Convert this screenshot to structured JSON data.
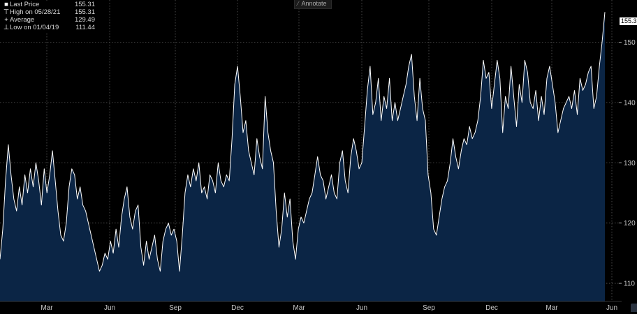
{
  "legend": {
    "items": [
      {
        "marker": "■",
        "label": "Last Price",
        "value": "155.31"
      },
      {
        "marker": "⊤",
        "label": "High on 05/28/21",
        "value": "155.31"
      },
      {
        "marker": "+",
        "label": "Average",
        "value": "129.49"
      },
      {
        "marker": "⊥",
        "label": "Low on 01/04/19",
        "value": "111.44"
      }
    ]
  },
  "toolbar": {
    "annotate_label": "Annotate"
  },
  "last_price_tag": "155.3",
  "colors": {
    "background": "#000000",
    "area_fill": "#0b2545",
    "line": "#ffffff",
    "grid": "#5a5a5a",
    "axis_text": "#c8c8c8"
  },
  "chart_data": {
    "type": "area",
    "title": "",
    "xlabel": "",
    "ylabel": "",
    "ylim": [
      107,
      157
    ],
    "yticks": [
      110,
      120,
      130,
      140,
      150
    ],
    "xticks": [
      "Mar",
      "Jun",
      "Sep",
      "Dec",
      "Mar",
      "Jun",
      "Sep",
      "Dec",
      "Mar",
      "Jun"
    ],
    "grid": true,
    "legend_position": "top-left",
    "series": [
      {
        "values": [
          114,
          119,
          127,
          133,
          128,
          124,
          122,
          126,
          123,
          128,
          125,
          129,
          126,
          130,
          127,
          123,
          129,
          125,
          128,
          132,
          127,
          122,
          118,
          117,
          120,
          126,
          129,
          128,
          124,
          126,
          123,
          122,
          120,
          118,
          116,
          114,
          112,
          113,
          115,
          114,
          117,
          115,
          119,
          116,
          121,
          124,
          126,
          121,
          119,
          122,
          123,
          116,
          113,
          117,
          114,
          116,
          118,
          114,
          112,
          117,
          119,
          120,
          118,
          119,
          117,
          112,
          118,
          125,
          128,
          126,
          129,
          127,
          130,
          125,
          126,
          124,
          128,
          127,
          125,
          130,
          127,
          126,
          128,
          127,
          134,
          143,
          146,
          141,
          135,
          137,
          132,
          130,
          128,
          134,
          131,
          129,
          141,
          135,
          132,
          130,
          122,
          116,
          119,
          125,
          121,
          124,
          117,
          114,
          119,
          121,
          120,
          122,
          124,
          125,
          128,
          131,
          128,
          127,
          124,
          126,
          128,
          125,
          124,
          130,
          132,
          127,
          125,
          131,
          134,
          132,
          129,
          130,
          136,
          142,
          146,
          138,
          140,
          144,
          137,
          141,
          139,
          144,
          137,
          140,
          137,
          139,
          141,
          143,
          146,
          148,
          141,
          137,
          144,
          139,
          137,
          128,
          125,
          119,
          118,
          121,
          124,
          126,
          127,
          130,
          134,
          131,
          129,
          132,
          134,
          133,
          136,
          134,
          135,
          137,
          141,
          147,
          144,
          145,
          139,
          143,
          147,
          144,
          135,
          141,
          139,
          146,
          141,
          136,
          143,
          140,
          147,
          145,
          140,
          139,
          142,
          137,
          141,
          138,
          144,
          146,
          143,
          140,
          135,
          137,
          139,
          140,
          141,
          139,
          142,
          138,
          144,
          142,
          143,
          145,
          146,
          139,
          141,
          146,
          150,
          155
        ]
      }
    ]
  }
}
